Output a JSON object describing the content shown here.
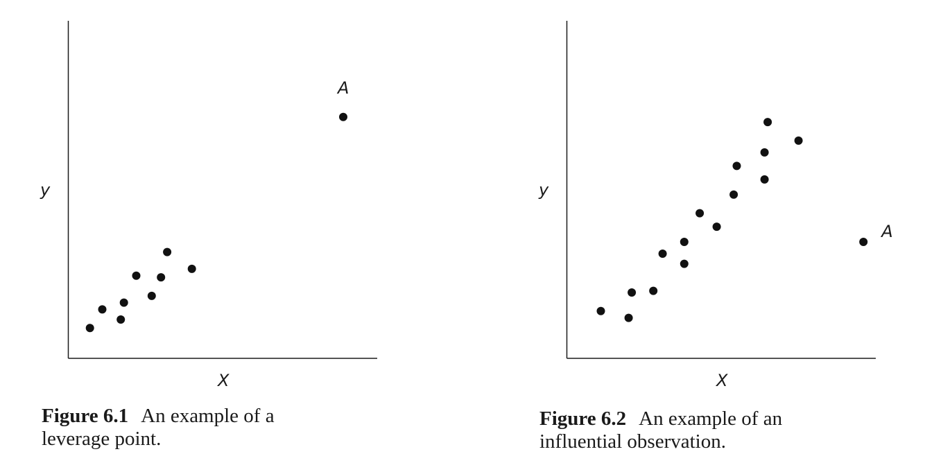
{
  "chart_data": [
    {
      "type": "scatter",
      "title": "",
      "xlabel": "X",
      "ylabel": "y",
      "xlim": [
        0,
        100
      ],
      "ylim": [
        0,
        100
      ],
      "grid": false,
      "points": [
        {
          "x": 7,
          "y": 9,
          "label": ""
        },
        {
          "x": 11,
          "y": 14.5,
          "label": ""
        },
        {
          "x": 17,
          "y": 11.5,
          "label": ""
        },
        {
          "x": 18,
          "y": 16.5,
          "label": ""
        },
        {
          "x": 22,
          "y": 24.5,
          "label": ""
        },
        {
          "x": 27,
          "y": 18.5,
          "label": ""
        },
        {
          "x": 30,
          "y": 24,
          "label": ""
        },
        {
          "x": 32,
          "y": 31.5,
          "label": ""
        },
        {
          "x": 40,
          "y": 26.5,
          "label": ""
        },
        {
          "x": 89,
          "y": 71.5,
          "label": "A"
        }
      ],
      "caption": {
        "number": "Figure 6.1",
        "text_line1": "An example of a",
        "text_line2": "leverage point."
      }
    },
    {
      "type": "scatter",
      "title": "",
      "xlabel": "X",
      "ylabel": "y",
      "xlim": [
        0,
        100
      ],
      "ylim": [
        0,
        100
      ],
      "grid": false,
      "points": [
        {
          "x": 11,
          "y": 14,
          "label": ""
        },
        {
          "x": 20,
          "y": 12,
          "label": ""
        },
        {
          "x": 21,
          "y": 19.5,
          "label": ""
        },
        {
          "x": 28,
          "y": 20,
          "label": ""
        },
        {
          "x": 31,
          "y": 31,
          "label": ""
        },
        {
          "x": 38,
          "y": 28,
          "label": ""
        },
        {
          "x": 38,
          "y": 34.5,
          "label": ""
        },
        {
          "x": 43,
          "y": 43,
          "label": ""
        },
        {
          "x": 48.5,
          "y": 39,
          "label": ""
        },
        {
          "x": 54,
          "y": 48.5,
          "label": ""
        },
        {
          "x": 55,
          "y": 57,
          "label": ""
        },
        {
          "x": 64,
          "y": 53,
          "label": ""
        },
        {
          "x": 64,
          "y": 61,
          "label": ""
        },
        {
          "x": 65,
          "y": 70,
          "label": ""
        },
        {
          "x": 75,
          "y": 64.5,
          "label": ""
        },
        {
          "x": 96,
          "y": 34.5,
          "label": "A"
        }
      ],
      "caption": {
        "number": "Figure 6.2",
        "text_line1": "An example of an",
        "text_line2": "influential observation."
      }
    }
  ]
}
